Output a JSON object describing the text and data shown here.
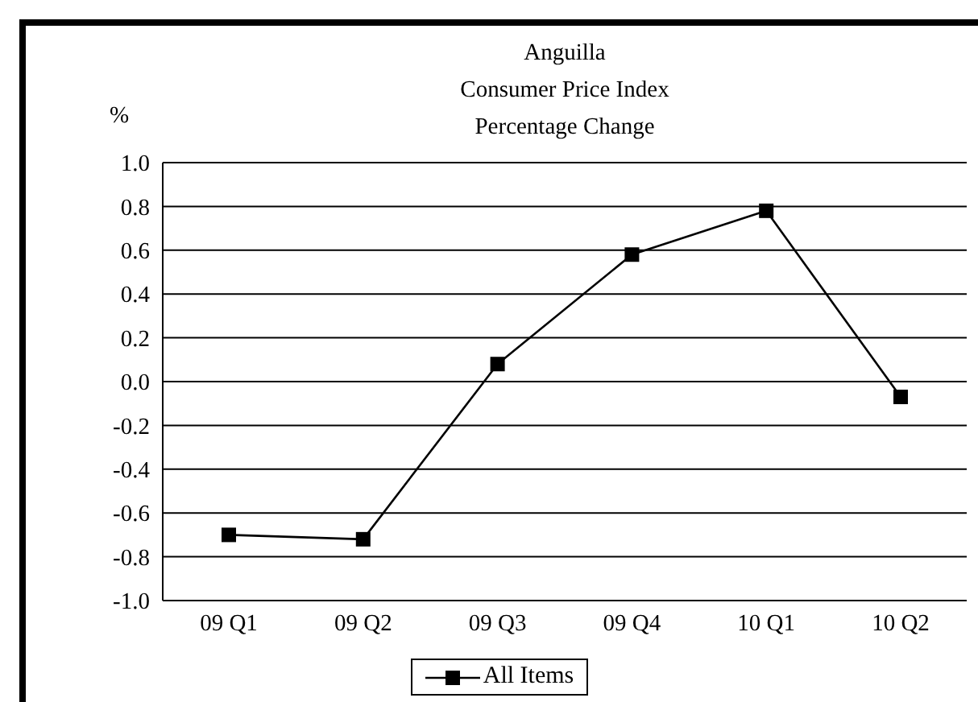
{
  "chart_data": {
    "type": "line",
    "title": "Anguilla\nConsumer Price Index\nPercentage Change",
    "ylabel": "%",
    "categories": [
      "09 Q1",
      "09 Q2",
      "09 Q3",
      "09 Q4",
      "10 Q1",
      "10 Q2"
    ],
    "series": [
      {
        "name": "All Items",
        "color": "#000000",
        "values": [
          -0.7,
          -0.72,
          0.08,
          0.58,
          0.78,
          -0.07
        ]
      }
    ],
    "ylim": [
      -1,
      1
    ],
    "yticks": [
      {
        "value": -1,
        "label": "-1.0"
      },
      {
        "value": -0.8,
        "label": "-0.8"
      },
      {
        "value": -0.6,
        "label": "-0.6"
      },
      {
        "value": -0.4,
        "label": "-0.4"
      },
      {
        "value": -0.2,
        "label": "-0.2"
      },
      {
        "value": 0,
        "label": "0.0"
      },
      {
        "value": 0.2,
        "label": "0.2"
      },
      {
        "value": 0.4,
        "label": "0.4"
      },
      {
        "value": 0.6,
        "label": "0.6"
      },
      {
        "value": 0.8,
        "label": "0.8"
      },
      {
        "value": 1,
        "label": "1.0"
      }
    ],
    "grid": "y",
    "legend": "bottom",
    "marker": "square",
    "line_style": "solid"
  }
}
